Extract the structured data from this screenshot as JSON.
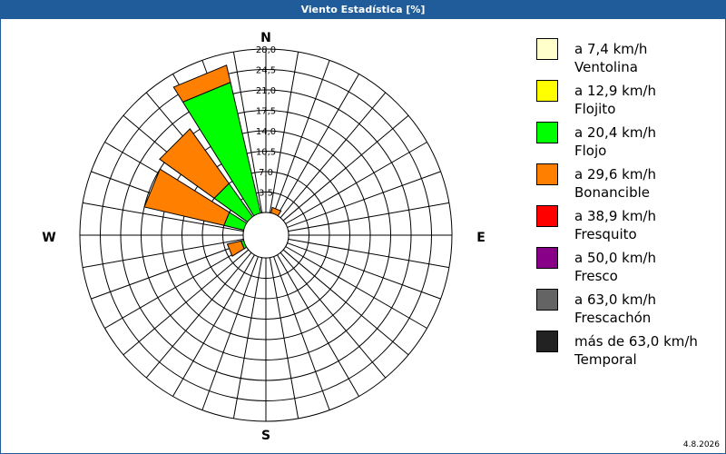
{
  "window": {
    "title": "Viento Estadística [%]"
  },
  "chart_data": {
    "type": "wind-rose",
    "unit": "%",
    "radial_range": [
      0,
      28.0
    ],
    "ring_labels": [
      "3,5",
      "7,0",
      "10,5",
      "14,0",
      "17,5",
      "21,0",
      "24,5",
      "28,0"
    ],
    "direction_labels": {
      "N": "N",
      "E": "E",
      "S": "S",
      "W": "W"
    },
    "sector_count": 16,
    "bins": [
      {
        "speed": "a 7,4 km/h",
        "name": "Ventolina",
        "color": "#ffffcc"
      },
      {
        "speed": "a 12,9 km/h",
        "name": "Flojito",
        "color": "#ffff00"
      },
      {
        "speed": "a 20,4 km/h",
        "name": "Flojo",
        "color": "#00ff00"
      },
      {
        "speed": "a 29,6 km/h",
        "name": "Bonancible",
        "color": "#ff8000"
      },
      {
        "speed": "a 38,9 km/h",
        "name": "Fresquito",
        "color": "#ff0000"
      },
      {
        "speed": "a 50,0 km/h",
        "name": "Fresco",
        "color": "#880088"
      },
      {
        "speed": "a 63,0 km/h",
        "name": "Frescachón",
        "color": "#646464"
      },
      {
        "speed": "más de 63,0 km/h",
        "name": "Temporal",
        "color": "#222222"
      }
    ],
    "sectors": [
      {
        "direction": "NNE",
        "values": [
          0,
          0,
          0,
          1.0,
          0,
          0,
          0,
          0
        ]
      },
      {
        "direction": "WSW",
        "values": [
          0,
          0,
          0.5,
          2.4,
          0,
          0,
          0,
          0
        ]
      },
      {
        "direction": "WNW",
        "values": [
          0,
          0,
          3.5,
          14.0,
          0,
          0,
          0,
          0
        ]
      },
      {
        "direction": "NW",
        "values": [
          0,
          0,
          7.0,
          11.5,
          0,
          0,
          0,
          0
        ]
      },
      {
        "direction": "NNW",
        "values": [
          0,
          0,
          23.0,
          3.0,
          0,
          0,
          0,
          0
        ]
      }
    ]
  },
  "footer": {
    "date": "4.8.2026"
  }
}
